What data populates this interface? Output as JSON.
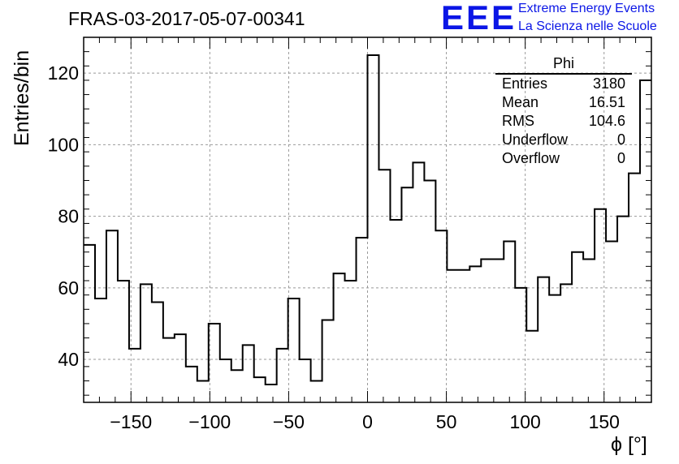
{
  "title": "FRAS-03-2017-05-07-00341",
  "logo": {
    "mark": "EEE",
    "line1": "Extreme Energy Events",
    "line2": "La Scienza nelle Scuole"
  },
  "stats_box": {
    "title": "Phi",
    "rows": [
      {
        "label": "Entries",
        "value": "3180"
      },
      {
        "label": "Mean",
        "value": "16.51"
      },
      {
        "label": "RMS",
        "value": "104.6"
      },
      {
        "label": "Underflow",
        "value": "0"
      },
      {
        "label": "Overflow",
        "value": "0"
      }
    ]
  },
  "chart_data": {
    "type": "histogram",
    "title": "FRAS-03-2017-05-07-00341",
    "xlabel": "ϕ [°]",
    "ylabel": "Entries/bin",
    "xlim": [
      -180,
      180
    ],
    "ylim": [
      28,
      130
    ],
    "bin_edges_start": -180,
    "bin_width": 7.2,
    "values": [
      72,
      57,
      76,
      62,
      43,
      61,
      56,
      46,
      47,
      38,
      34,
      50,
      40,
      37,
      44,
      35,
      33,
      43,
      57,
      40,
      34,
      51,
      64,
      62,
      74,
      125,
      93,
      79,
      88,
      95,
      90,
      76,
      65,
      65,
      66,
      68,
      68,
      73,
      60,
      48,
      63,
      58,
      61,
      70,
      68,
      82,
      73,
      80,
      92,
      118
    ],
    "x_ticks": [
      -150,
      -100,
      -50,
      0,
      50,
      100,
      150
    ],
    "x_tick_labels": [
      "−150",
      "−100",
      "−50",
      "0",
      "50",
      "100",
      "150"
    ],
    "y_ticks": [
      40,
      60,
      80,
      100,
      120
    ],
    "y_tick_labels": [
      "40",
      "60",
      "80",
      "100",
      "120"
    ],
    "grid": true,
    "line_color": "#000000"
  }
}
